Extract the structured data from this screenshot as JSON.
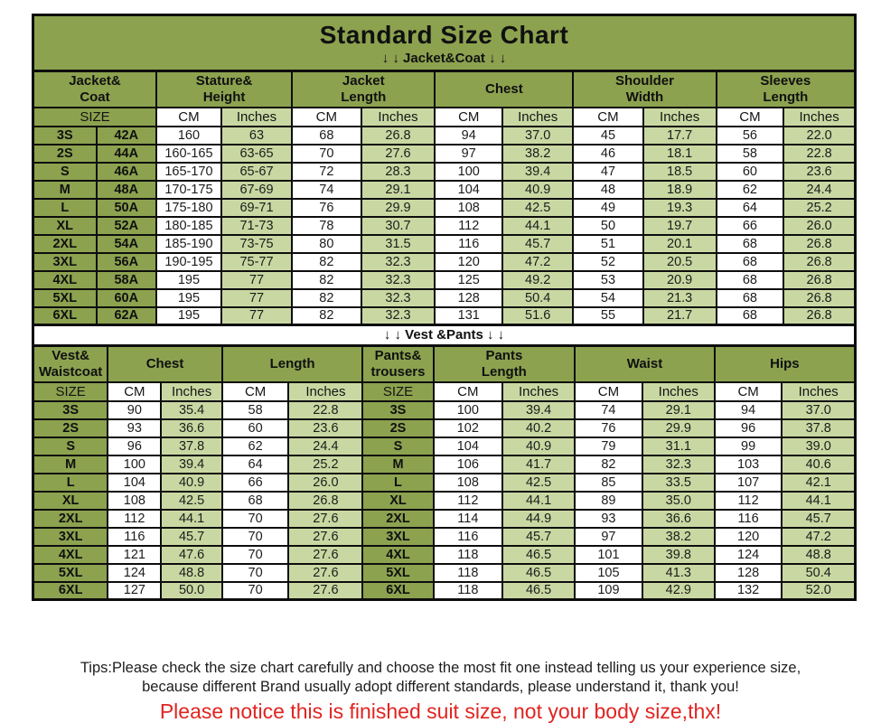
{
  "header": {
    "title": "Standard Size Chart"
  },
  "footer": {
    "tips_line1": "Tips:Please check the size chart carefully and choose the most fit one instead telling us your experience size,",
    "tips_line2": "because different Brand usually adopt different standards, please understand it, thank you!",
    "notice": "Please notice this is finished suit size, not your body size,thx!"
  },
  "colors": {
    "olive_green": "#8ca24f",
    "light_green": "#c9d8a2",
    "cell_white": "#ffffff",
    "border_black": "#0d0d0d",
    "notice_red": "#e02420"
  },
  "chart_data": [
    {
      "type": "table",
      "name": "jacket-coat",
      "section_label": "↓ ↓  Jacket&Coat ↓ ↓",
      "group_headers": [
        {
          "label": "Jacket&\nCoat",
          "span": 2
        },
        {
          "label": "Stature&\nHeight",
          "span": 2
        },
        {
          "label": "Jacket\nLength",
          "span": 2
        },
        {
          "label": "Chest",
          "span": 2
        },
        {
          "label": "Shoulder\nWidth",
          "span": 2
        },
        {
          "label": "Sleeves\nLength",
          "span": 2
        }
      ],
      "subheaders": [
        {
          "label": "SIZE",
          "span": 2,
          "type": "size"
        },
        {
          "label": "CM",
          "span": 1,
          "type": "cm"
        },
        {
          "label": "Inches",
          "span": 1,
          "type": "in"
        },
        {
          "label": "CM",
          "span": 1,
          "type": "cm"
        },
        {
          "label": "Inches",
          "span": 1,
          "type": "in"
        },
        {
          "label": "CM",
          "span": 1,
          "type": "cm"
        },
        {
          "label": "Inches",
          "span": 1,
          "type": "in"
        },
        {
          "label": "CM",
          "span": 1,
          "type": "cm"
        },
        {
          "label": "Inches",
          "span": 1,
          "type": "in"
        },
        {
          "label": "CM",
          "span": 1,
          "type": "cm"
        },
        {
          "label": "Inches",
          "span": 1,
          "type": "in"
        }
      ],
      "col_types": [
        "size",
        "size",
        "cm",
        "in",
        "cm",
        "in",
        "cm",
        "in",
        "cm",
        "in",
        "cm",
        "in"
      ],
      "rows": [
        [
          "3S",
          "42A",
          "160",
          "63",
          "68",
          "26.8",
          "94",
          "37.0",
          "45",
          "17.7",
          "56",
          "22.0"
        ],
        [
          "2S",
          "44A",
          "160-165",
          "63-65",
          "70",
          "27.6",
          "97",
          "38.2",
          "46",
          "18.1",
          "58",
          "22.8"
        ],
        [
          "S",
          "46A",
          "165-170",
          "65-67",
          "72",
          "28.3",
          "100",
          "39.4",
          "47",
          "18.5",
          "60",
          "23.6"
        ],
        [
          "M",
          "48A",
          "170-175",
          "67-69",
          "74",
          "29.1",
          "104",
          "40.9",
          "48",
          "18.9",
          "62",
          "24.4"
        ],
        [
          "L",
          "50A",
          "175-180",
          "69-71",
          "76",
          "29.9",
          "108",
          "42.5",
          "49",
          "19.3",
          "64",
          "25.2"
        ],
        [
          "XL",
          "52A",
          "180-185",
          "71-73",
          "78",
          "30.7",
          "112",
          "44.1",
          "50",
          "19.7",
          "66",
          "26.0"
        ],
        [
          "2XL",
          "54A",
          "185-190",
          "73-75",
          "80",
          "31.5",
          "116",
          "45.7",
          "51",
          "20.1",
          "68",
          "26.8"
        ],
        [
          "3XL",
          "56A",
          "190-195",
          "75-77",
          "82",
          "32.3",
          "120",
          "47.2",
          "52",
          "20.5",
          "68",
          "26.8"
        ],
        [
          "4XL",
          "58A",
          "195",
          "77",
          "82",
          "32.3",
          "125",
          "49.2",
          "53",
          "20.9",
          "68",
          "26.8"
        ],
        [
          "5XL",
          "60A",
          "195",
          "77",
          "82",
          "32.3",
          "128",
          "50.4",
          "54",
          "21.3",
          "68",
          "26.8"
        ],
        [
          "6XL",
          "62A",
          "195",
          "77",
          "82",
          "32.3",
          "131",
          "51.6",
          "55",
          "21.7",
          "68",
          "26.8"
        ]
      ]
    },
    {
      "type": "table",
      "name": "vest-pants",
      "section_label": "↓ ↓  Vest &Pants ↓ ↓",
      "group_headers": [
        {
          "label": "Vest&\nWaistcoat",
          "span": 1
        },
        {
          "label": "Chest",
          "span": 2
        },
        {
          "label": "Length",
          "span": 2
        },
        {
          "label": "Pants&\ntrousers",
          "span": 1
        },
        {
          "label": "Pants\nLength",
          "span": 2
        },
        {
          "label": "Waist",
          "span": 2
        },
        {
          "label": "Hips",
          "span": 2
        }
      ],
      "subheaders": [
        {
          "label": "SIZE",
          "span": 1,
          "type": "size"
        },
        {
          "label": "CM",
          "span": 1,
          "type": "cm"
        },
        {
          "label": "Inches",
          "span": 1,
          "type": "in"
        },
        {
          "label": "CM",
          "span": 1,
          "type": "cm"
        },
        {
          "label": "Inches",
          "span": 1,
          "type": "in"
        },
        {
          "label": "SIZE",
          "span": 1,
          "type": "size"
        },
        {
          "label": "CM",
          "span": 1,
          "type": "cm"
        },
        {
          "label": "Inches",
          "span": 1,
          "type": "in"
        },
        {
          "label": "CM",
          "span": 1,
          "type": "cm"
        },
        {
          "label": "Inches",
          "span": 1,
          "type": "in"
        },
        {
          "label": "CM",
          "span": 1,
          "type": "cm"
        },
        {
          "label": "Inches",
          "span": 1,
          "type": "in"
        }
      ],
      "col_types": [
        "size",
        "cm",
        "in",
        "cm",
        "in",
        "size",
        "cm",
        "in",
        "cm",
        "in",
        "cm",
        "in"
      ],
      "rows": [
        [
          "3S",
          "90",
          "35.4",
          "58",
          "22.8",
          "3S",
          "100",
          "39.4",
          "74",
          "29.1",
          "94",
          "37.0"
        ],
        [
          "2S",
          "93",
          "36.6",
          "60",
          "23.6",
          "2S",
          "102",
          "40.2",
          "76",
          "29.9",
          "96",
          "37.8"
        ],
        [
          "S",
          "96",
          "37.8",
          "62",
          "24.4",
          "S",
          "104",
          "40.9",
          "79",
          "31.1",
          "99",
          "39.0"
        ],
        [
          "M",
          "100",
          "39.4",
          "64",
          "25.2",
          "M",
          "106",
          "41.7",
          "82",
          "32.3",
          "103",
          "40.6"
        ],
        [
          "L",
          "104",
          "40.9",
          "66",
          "26.0",
          "L",
          "108",
          "42.5",
          "85",
          "33.5",
          "107",
          "42.1"
        ],
        [
          "XL",
          "108",
          "42.5",
          "68",
          "26.8",
          "XL",
          "112",
          "44.1",
          "89",
          "35.0",
          "112",
          "44.1"
        ],
        [
          "2XL",
          "112",
          "44.1",
          "70",
          "27.6",
          "2XL",
          "114",
          "44.9",
          "93",
          "36.6",
          "116",
          "45.7"
        ],
        [
          "3XL",
          "116",
          "45.7",
          "70",
          "27.6",
          "3XL",
          "116",
          "45.7",
          "97",
          "38.2",
          "120",
          "47.2"
        ],
        [
          "4XL",
          "121",
          "47.6",
          "70",
          "27.6",
          "4XL",
          "118",
          "46.5",
          "101",
          "39.8",
          "124",
          "48.8"
        ],
        [
          "5XL",
          "124",
          "48.8",
          "70",
          "27.6",
          "5XL",
          "118",
          "46.5",
          "105",
          "41.3",
          "128",
          "50.4"
        ],
        [
          "6XL",
          "127",
          "50.0",
          "70",
          "27.6",
          "6XL",
          "118",
          "46.5",
          "109",
          "42.9",
          "132",
          "52.0"
        ]
      ]
    }
  ]
}
